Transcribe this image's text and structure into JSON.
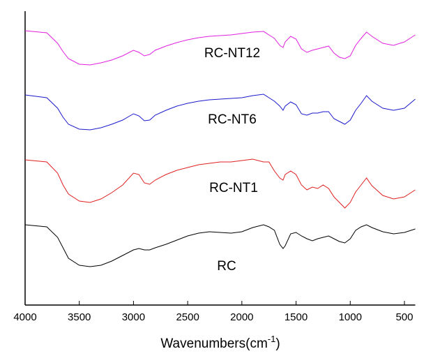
{
  "chart_data": {
    "type": "line",
    "xlabel": {
      "text": "Wavenumbers(cm",
      "sup": "-1",
      "tail": ")"
    },
    "x": [
      4000,
      3800,
      3700,
      3650,
      3600,
      3500,
      3400,
      3300,
      3200,
      3100,
      3000,
      2950,
      2900,
      2850,
      2800,
      2700,
      2600,
      2500,
      2400,
      2300,
      2200,
      2100,
      2000,
      1900,
      1800,
      1750,
      1700,
      1650,
      1620,
      1600,
      1550,
      1500,
      1450,
      1400,
      1350,
      1300,
      1250,
      1200,
      1150,
      1100,
      1050,
      1000,
      950,
      900,
      850,
      800,
      700,
      600,
      500,
      400
    ],
    "xlim": [
      4000,
      400
    ],
    "xticks": [
      4000,
      3500,
      3000,
      2500,
      2000,
      1500,
      1000,
      500
    ],
    "ylim": [
      0,
      421
    ],
    "series": [
      {
        "name": "RC",
        "color": "#000000",
        "values": [
          115,
          112,
          97,
          82,
          67,
          57,
          55,
          57,
          63,
          71,
          79,
          81,
          79,
          79,
          82,
          87,
          93,
          99,
          103,
          105,
          104,
          103,
          105,
          111,
          115,
          112,
          107,
          87,
          81,
          85,
          102,
          104,
          99,
          95,
          92,
          95,
          97,
          99,
          95,
          91,
          89,
          95,
          107,
          112,
          115,
          111,
          105,
          102,
          104,
          109
        ]
      },
      {
        "name": "RC-NT1",
        "color": "#e02020",
        "values": [
          208,
          205,
          189,
          172,
          159,
          149,
          147,
          152,
          161,
          172,
          189,
          187,
          175,
          173,
          179,
          187,
          193,
          197,
          201,
          203,
          205,
          205,
          207,
          209,
          205,
          205,
          192,
          182,
          179,
          187,
          192,
          187,
          172,
          165,
          169,
          167,
          172,
          167,
          155,
          147,
          139,
          147,
          162,
          172,
          182,
          171,
          157,
          152,
          155,
          165
        ]
      },
      {
        "name": "RC-NT6",
        "color": "#1a1acc",
        "values": [
          301,
          297,
          282,
          269,
          259,
          252,
          251,
          254,
          259,
          265,
          274,
          271,
          264,
          265,
          272,
          279,
          285,
          289,
          292,
          294,
          295,
          296,
          297,
          300,
          302,
          297,
          292,
          285,
          279,
          285,
          291,
          287,
          274,
          272,
          275,
          275,
          277,
          277,
          267,
          263,
          259,
          265,
          279,
          289,
          300,
          292,
          282,
          279,
          282,
          295
        ]
      },
      {
        "name": "RC-NT12",
        "color": "#e020e0",
        "values": [
          393,
          390,
          375,
          363,
          353,
          345,
          344,
          347,
          351,
          357,
          365,
          362,
          357,
          359,
          365,
          371,
          376,
          380,
          383,
          385,
          386,
          387,
          389,
          391,
          392,
          387,
          382,
          372,
          369,
          377,
          385,
          381,
          367,
          362,
          365,
          367,
          369,
          371,
          361,
          355,
          353,
          357,
          372,
          382,
          391,
          385,
          375,
          372,
          377,
          387
        ]
      }
    ]
  }
}
